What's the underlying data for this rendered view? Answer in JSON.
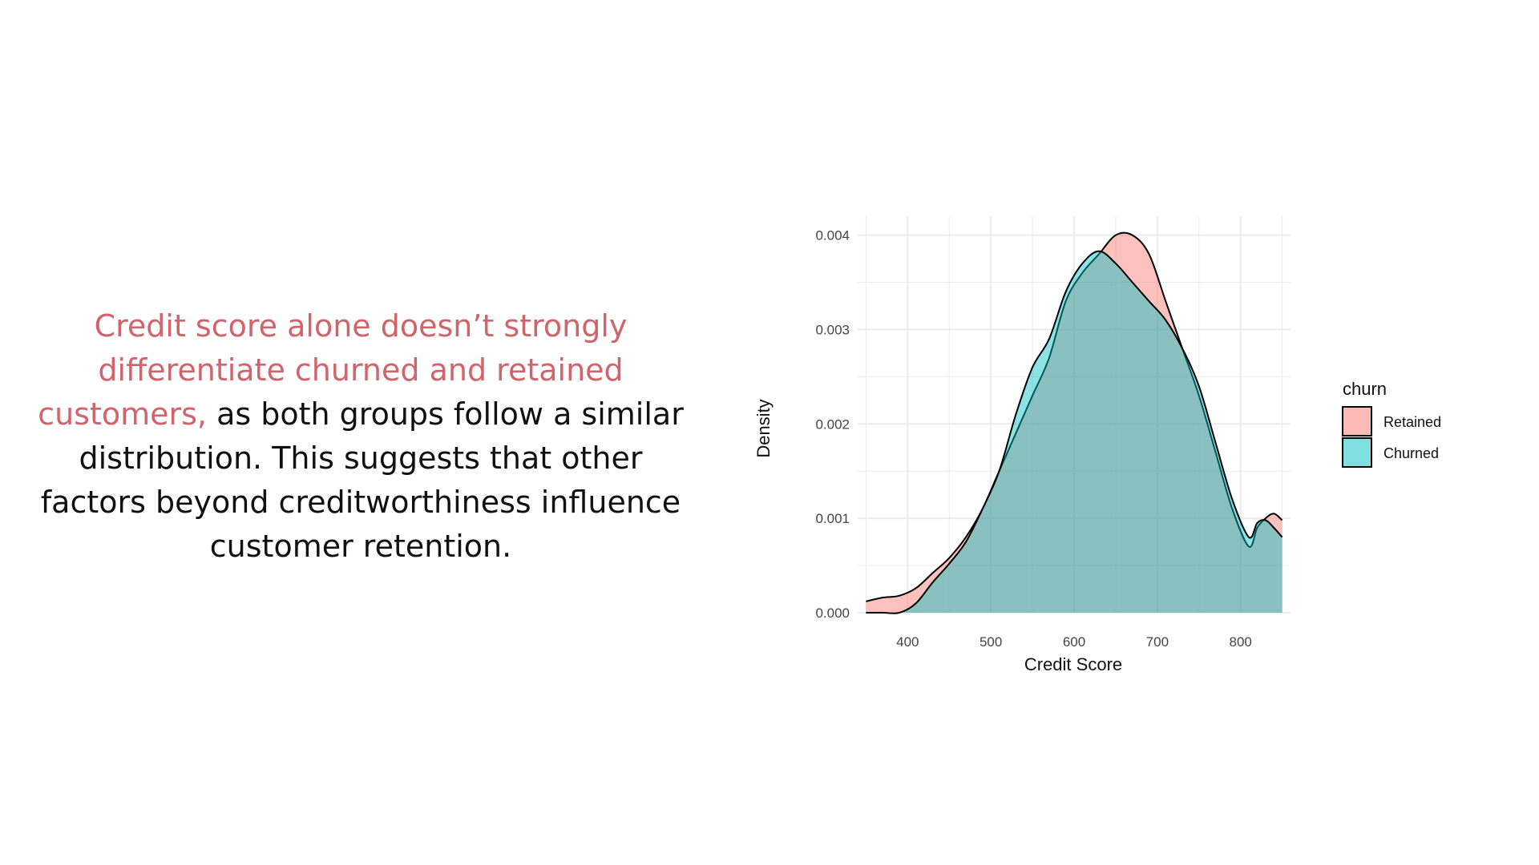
{
  "caption": {
    "highlight_lines": [
      "Credit score alone doesn’t strongly",
      "differentiate churned and retained",
      "customers,"
    ],
    "rest_of_line3": " as both groups follow a similar",
    "lines": [
      "distribution. This suggests that other",
      "factors beyond creditworthiness influence",
      "customer retention."
    ]
  },
  "colors": {
    "highlight": "#d1646a",
    "retained_fill": "#f8766d",
    "churned_fill": "#00bfc4",
    "outline": "#000000",
    "grid": "#ebebeb"
  },
  "chart_data": {
    "type": "area",
    "subtype": "density",
    "title": "",
    "xlabel": "Credit Score",
    "ylabel": "Density",
    "xlim": [
      340,
      860
    ],
    "ylim": [
      0,
      0.0042
    ],
    "x_ticks": [
      400,
      500,
      600,
      700,
      800
    ],
    "y_ticks": [
      0.0,
      0.001,
      0.002,
      0.003,
      0.004
    ],
    "y_tick_labels": [
      "0.000",
      "0.001",
      "0.002",
      "0.003",
      "0.004"
    ],
    "grid": true,
    "legend": {
      "title": "churn",
      "position": "right",
      "entries": [
        "Retained",
        "Churned"
      ]
    },
    "x": [
      350,
      370,
      390,
      410,
      430,
      450,
      470,
      490,
      510,
      530,
      550,
      570,
      590,
      610,
      630,
      650,
      670,
      690,
      710,
      730,
      750,
      770,
      790,
      810,
      820,
      830,
      840,
      850
    ],
    "series": [
      {
        "name": "Retained",
        "values": [
          0.00012,
          0.00016,
          0.00018,
          0.00026,
          0.00042,
          0.00058,
          0.0008,
          0.0011,
          0.0015,
          0.0019,
          0.0023,
          0.0027,
          0.0033,
          0.0036,
          0.0038,
          0.004,
          0.004,
          0.0038,
          0.0033,
          0.0028,
          0.0023,
          0.0017,
          0.0011,
          0.0007,
          0.0009,
          0.001,
          0.00105,
          0.00098
        ]
      },
      {
        "name": "Churned",
        "values": [
          0.0,
          0.0,
          0.0,
          0.0001,
          0.00032,
          0.00052,
          0.00075,
          0.0011,
          0.0015,
          0.0021,
          0.0026,
          0.0029,
          0.0034,
          0.0037,
          0.00383,
          0.0037,
          0.0035,
          0.0033,
          0.0031,
          0.0028,
          0.0024,
          0.0018,
          0.0012,
          0.0008,
          0.00095,
          0.00098,
          0.0009,
          0.0008
        ]
      }
    ]
  }
}
